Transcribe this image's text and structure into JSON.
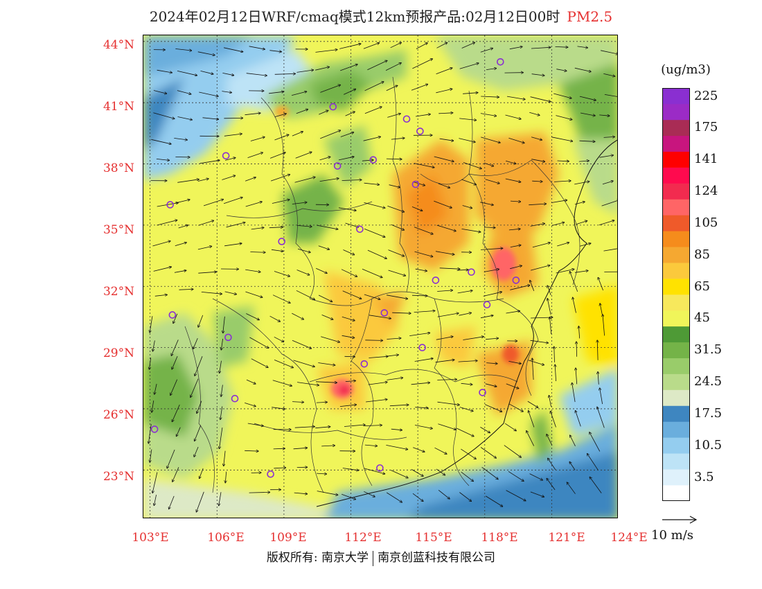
{
  "header": {
    "title": "2024年02月12日WRF/cmaq模式12km预报产品:02月12日00时",
    "product": "PM2.5"
  },
  "axes": {
    "lat_labels": [
      "44°N",
      "41°N",
      "38°N",
      "35°N",
      "32°N",
      "29°N",
      "26°N",
      "23°N"
    ],
    "lon_labels": [
      "103°E",
      "106°E",
      "109°E",
      "112°E",
      "115°E",
      "118°E",
      "121°E",
      "124°E"
    ]
  },
  "legend": {
    "units": "(ug/m3)",
    "levels": [
      {
        "label": "",
        "color": "#ffffff"
      },
      {
        "label": "3.5",
        "color": "#dff1fb"
      },
      {
        "label": "",
        "color": "#bde3f6"
      },
      {
        "label": "10.5",
        "color": "#94cdef"
      },
      {
        "label": "",
        "color": "#6aaedd"
      },
      {
        "label": "17.5",
        "color": "#3e86c0"
      },
      {
        "label": "",
        "color": "#dde9c6"
      },
      {
        "label": "24.5",
        "color": "#b9db8a"
      },
      {
        "label": "",
        "color": "#99cc6a"
      },
      {
        "label": "31.5",
        "color": "#74b348"
      },
      {
        "label": "",
        "color": "#4e9a36"
      },
      {
        "label": "45",
        "color": "#f0f55a"
      },
      {
        "label": "",
        "color": "#f7e85c"
      },
      {
        "label": "65",
        "color": "#ffe200"
      },
      {
        "label": "",
        "color": "#fbc93c"
      },
      {
        "label": "85",
        "color": "#f5a831"
      },
      {
        "label": "",
        "color": "#f58c1c"
      },
      {
        "label": "105",
        "color": "#ef5a2a"
      },
      {
        "label": "",
        "color": "#ff6566"
      },
      {
        "label": "124",
        "color": "#f22b4f"
      },
      {
        "label": "",
        "color": "#ff0a4e"
      },
      {
        "label": "141",
        "color": "#ff0000"
      },
      {
        "label": "",
        "color": "#c8157e"
      },
      {
        "label": "175",
        "color": "#a92c55"
      },
      {
        "label": "",
        "color": "#9b2bc6"
      },
      {
        "label": "225",
        "color": "#8a2fd1"
      }
    ],
    "wind_ref": "10 m/s"
  },
  "stations": [
    {
      "lon": 118.7,
      "lat": 43.0
    },
    {
      "lon": 111.2,
      "lat": 40.8
    },
    {
      "lon": 114.5,
      "lat": 40.2
    },
    {
      "lon": 115.1,
      "lat": 39.6
    },
    {
      "lon": 106.4,
      "lat": 38.4
    },
    {
      "lon": 111.4,
      "lat": 37.9
    },
    {
      "lon": 113.0,
      "lat": 38.2
    },
    {
      "lon": 114.9,
      "lat": 37.0
    },
    {
      "lon": 103.9,
      "lat": 36.0
    },
    {
      "lon": 112.4,
      "lat": 34.8
    },
    {
      "lon": 108.9,
      "lat": 34.2
    },
    {
      "lon": 117.4,
      "lat": 32.7
    },
    {
      "lon": 115.8,
      "lat": 32.3
    },
    {
      "lon": 119.4,
      "lat": 32.3
    },
    {
      "lon": 118.1,
      "lat": 31.1
    },
    {
      "lon": 113.5,
      "lat": 30.7
    },
    {
      "lon": 104.0,
      "lat": 30.6
    },
    {
      "lon": 106.5,
      "lat": 29.5
    },
    {
      "lon": 115.2,
      "lat": 29.0
    },
    {
      "lon": 112.6,
      "lat": 28.2
    },
    {
      "lon": 106.8,
      "lat": 26.5
    },
    {
      "lon": 117.9,
      "lat": 26.8
    },
    {
      "lon": 103.2,
      "lat": 25.0
    },
    {
      "lon": 108.4,
      "lat": 22.8
    },
    {
      "lon": 113.3,
      "lat": 23.1
    }
  ],
  "footer": {
    "copyright": "版权所有: 南京大学",
    "company": "南京创蓝科技有限公司"
  }
}
